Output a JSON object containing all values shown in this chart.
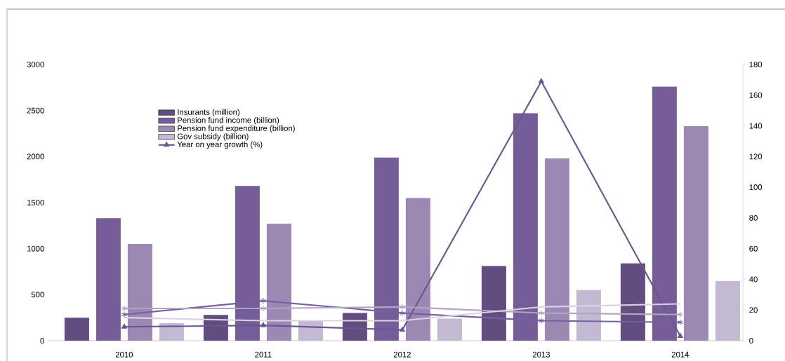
{
  "chart_data": {
    "type": "bar",
    "categories": [
      "2010",
      "2011",
      "2012",
      "2013",
      "2014"
    ],
    "ylim": [
      0,
      3000
    ],
    "yticks": [
      0,
      500,
      1000,
      1500,
      2000,
      2500,
      3000
    ],
    "y2lim": [
      0,
      180
    ],
    "y2ticks": [
      0,
      20,
      40,
      60,
      80,
      100,
      120,
      140,
      160,
      180
    ],
    "legend": "top left",
    "series": [
      {
        "name": "Insurants (million)",
        "color": "#634d80",
        "values": [
          250,
          280,
          300,
          810,
          840
        ]
      },
      {
        "name": "Pension fund income (billion)",
        "color": "#765c98",
        "values": [
          1330,
          1680,
          1990,
          2470,
          2760
        ]
      },
      {
        "name": "Pension fund expenditure (billion)",
        "color": "#9c89b3",
        "values": [
          1050,
          1270,
          1550,
          1980,
          2330
        ]
      },
      {
        "name": "Gov subsidy (billion)",
        "color": "#c3b9d3",
        "values": [
          190,
          220,
          240,
          550,
          650
        ]
      },
      {
        "name": "Year on year growth (%)",
        "type": "line",
        "axis": "y2",
        "marker": "triangle",
        "color": "#6c5590",
        "values": [
          9,
          10,
          7,
          169,
          3
        ]
      },
      {
        "type": "line",
        "axis": "y2",
        "marker": "cross",
        "color": "#7a5ea0",
        "values": [
          17,
          26,
          18,
          13,
          12
        ]
      },
      {
        "type": "line",
        "axis": "y2",
        "marker": "cross",
        "color": "#b0a4c6",
        "values": [
          21,
          21,
          22,
          18,
          17
        ]
      },
      {
        "type": "line",
        "axis": "y2",
        "marker": "none",
        "color": "#d9d3e3",
        "values": [
          15,
          13,
          13,
          22,
          24
        ]
      }
    ]
  }
}
